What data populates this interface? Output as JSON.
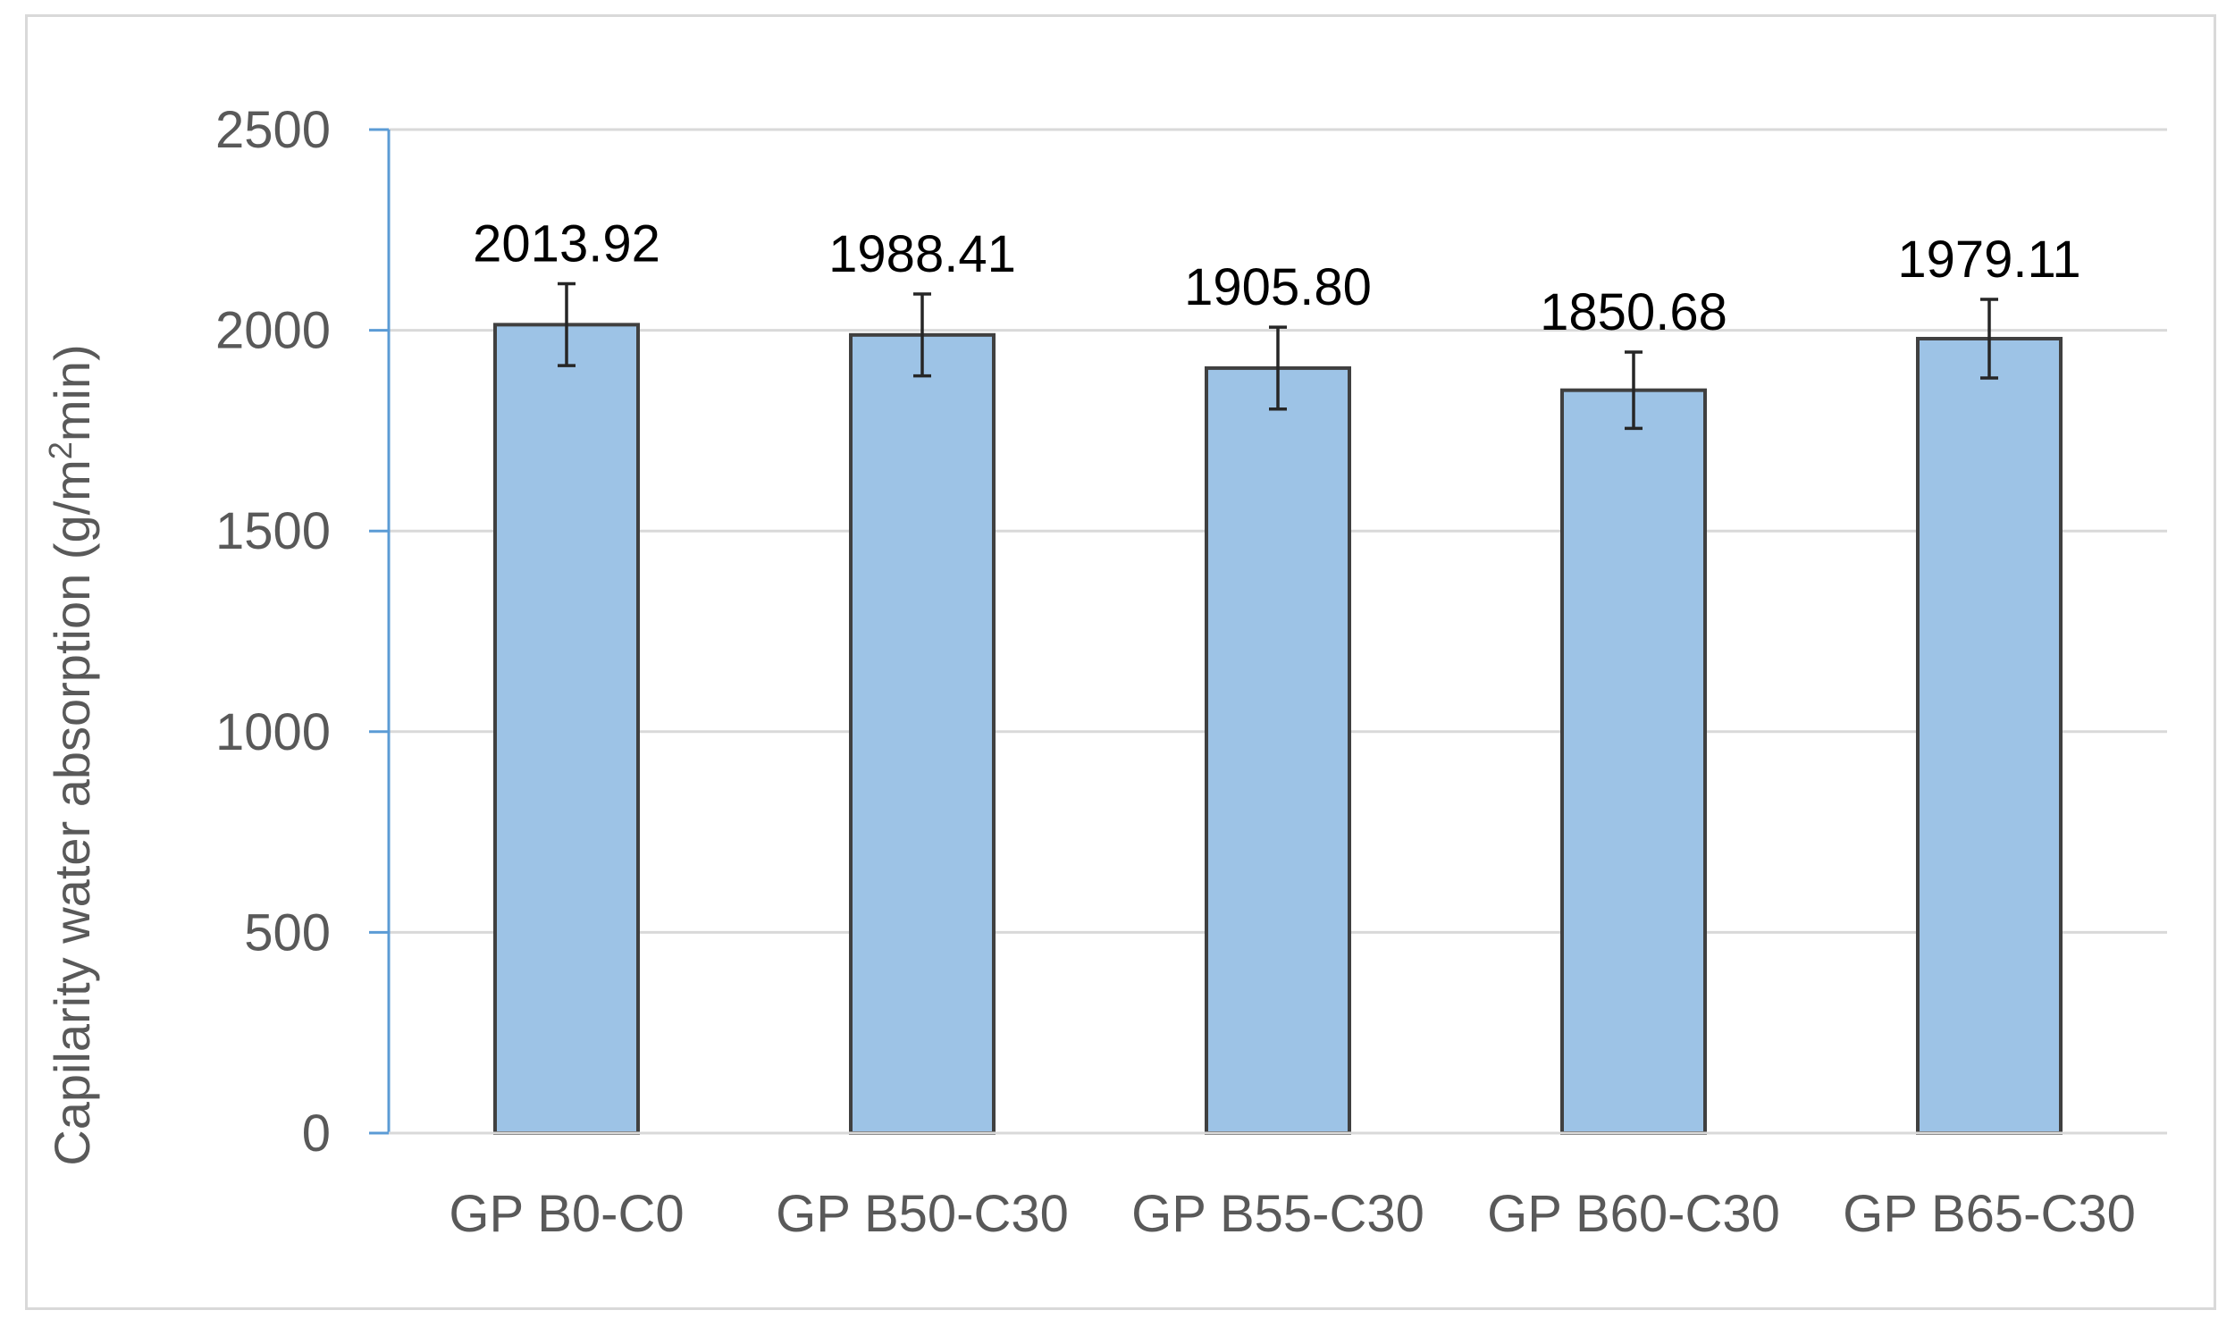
{
  "chart_data": {
    "type": "bar",
    "title": "",
    "xlabel": "",
    "ylabel": "Capilarity water absorption (g/m²min)",
    "ylabel_parts": [
      "Capilarity water absorption (g/m",
      "2",
      "min)"
    ],
    "categories": [
      "GP B0-C0",
      "GP B50-C30",
      "GP B55-C30",
      "GP B60-C30",
      "GP B65-C30"
    ],
    "values": [
      2013.92,
      1988.41,
      1905.8,
      1850.68,
      1979.11
    ],
    "data_labels": [
      "2013.92",
      "1988.41",
      "1905.80",
      "1850.68",
      "1979.11"
    ],
    "error": [
      102,
      102,
      102,
      95,
      98
    ],
    "ylim": [
      0,
      2500
    ],
    "yticks": [
      0,
      500,
      1000,
      1500,
      2000,
      2500
    ],
    "grid": true,
    "legend": "none",
    "colors": {
      "bar_fill": "#9dc3e6",
      "bar_stroke": "#404040",
      "grid": "#d9d9d9",
      "axis": "#5b9bd5",
      "error_bar": "#262626"
    }
  }
}
